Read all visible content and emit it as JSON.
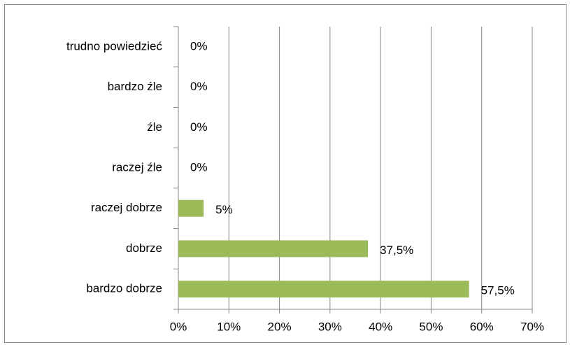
{
  "chart_data": {
    "type": "bar",
    "orientation": "horizontal",
    "categories": [
      "trudno powiedzieć",
      "bardzo źle",
      "źle",
      "raczej źle",
      "raczej dobrze",
      "dobrze",
      "bardzo dobrze"
    ],
    "values": [
      0,
      0,
      0,
      0,
      5,
      37.5,
      57.5
    ],
    "value_labels": [
      "0%",
      "0%",
      "0%",
      "0%",
      "5%",
      "37,5%",
      "57,5%"
    ],
    "color": "#9bbb59",
    "xlim": [
      0,
      70
    ],
    "xticks": [
      {
        "value": 0,
        "label": "0%"
      },
      {
        "value": 10,
        "label": "10%"
      },
      {
        "value": 20,
        "label": "20%"
      },
      {
        "value": 30,
        "label": "30%"
      },
      {
        "value": 40,
        "label": "40%"
      },
      {
        "value": 50,
        "label": "50%"
      },
      {
        "value": 60,
        "label": "60%"
      },
      {
        "value": 70,
        "label": "70%"
      }
    ],
    "grid": true
  }
}
